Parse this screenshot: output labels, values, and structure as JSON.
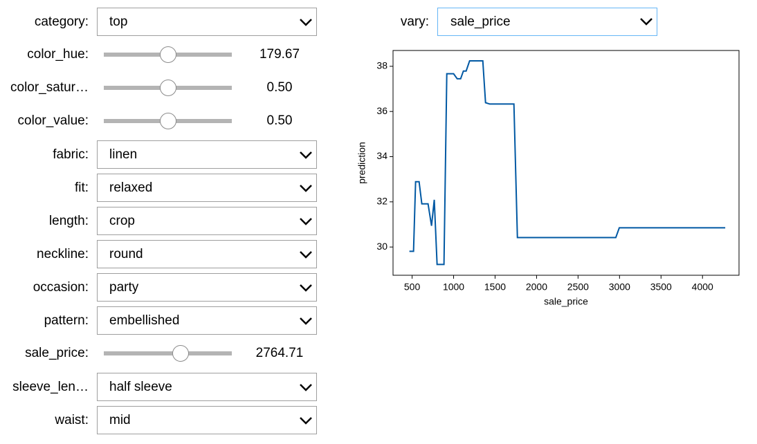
{
  "controls": [
    {
      "label": "category:",
      "kind": "select",
      "value": "top"
    },
    {
      "label": "color_hue:",
      "kind": "slider",
      "value": "179.67"
    },
    {
      "label": "color_satur…",
      "kind": "slider",
      "value": "0.50"
    },
    {
      "label": "color_value:",
      "kind": "slider",
      "value": "0.50"
    },
    {
      "label": "fabric:",
      "kind": "select",
      "value": "linen"
    },
    {
      "label": "fit:",
      "kind": "select",
      "value": "relaxed"
    },
    {
      "label": "length:",
      "kind": "select",
      "value": "crop"
    },
    {
      "label": "neckline:",
      "kind": "select",
      "value": "round"
    },
    {
      "label": "occasion:",
      "kind": "select",
      "value": "party"
    },
    {
      "label": "pattern:",
      "kind": "select",
      "value": "embellished"
    },
    {
      "label": "sale_price:",
      "kind": "slider",
      "value": "2764.71"
    },
    {
      "label": "sleeve_len…",
      "kind": "select",
      "value": "half sleeve"
    },
    {
      "label": "waist:",
      "kind": "select",
      "value": "mid"
    }
  ],
  "vary": {
    "label": "vary:",
    "value": "sale_price"
  },
  "chart_data": {
    "type": "line",
    "xlabel": "sale_price",
    "ylabel": "prediction",
    "x": [
      467,
      517,
      542,
      584,
      617,
      692,
      734,
      767,
      801,
      884,
      918,
      1000,
      1043,
      1085,
      1118,
      1151,
      1193,
      1352,
      1385,
      1435,
      1727,
      1769,
      2955,
      2997,
      4274
    ],
    "series": [
      {
        "color": "#0058a3",
        "values": [
          29.81,
          29.81,
          32.89,
          32.89,
          31.91,
          31.91,
          30.94,
          32.09,
          29.23,
          29.23,
          37.67,
          37.67,
          37.45,
          37.45,
          37.79,
          37.79,
          38.24,
          38.24,
          36.39,
          36.33,
          36.33,
          30.42,
          30.42,
          30.85,
          30.85
        ]
      }
    ],
    "xlim": [
      270,
      4440
    ],
    "ylim": [
      28.75,
      38.7
    ],
    "xticks": [
      500,
      1000,
      1500,
      2000,
      2500,
      3000,
      3500,
      4000
    ],
    "yticks": [
      30,
      32,
      34,
      36,
      38
    ]
  }
}
